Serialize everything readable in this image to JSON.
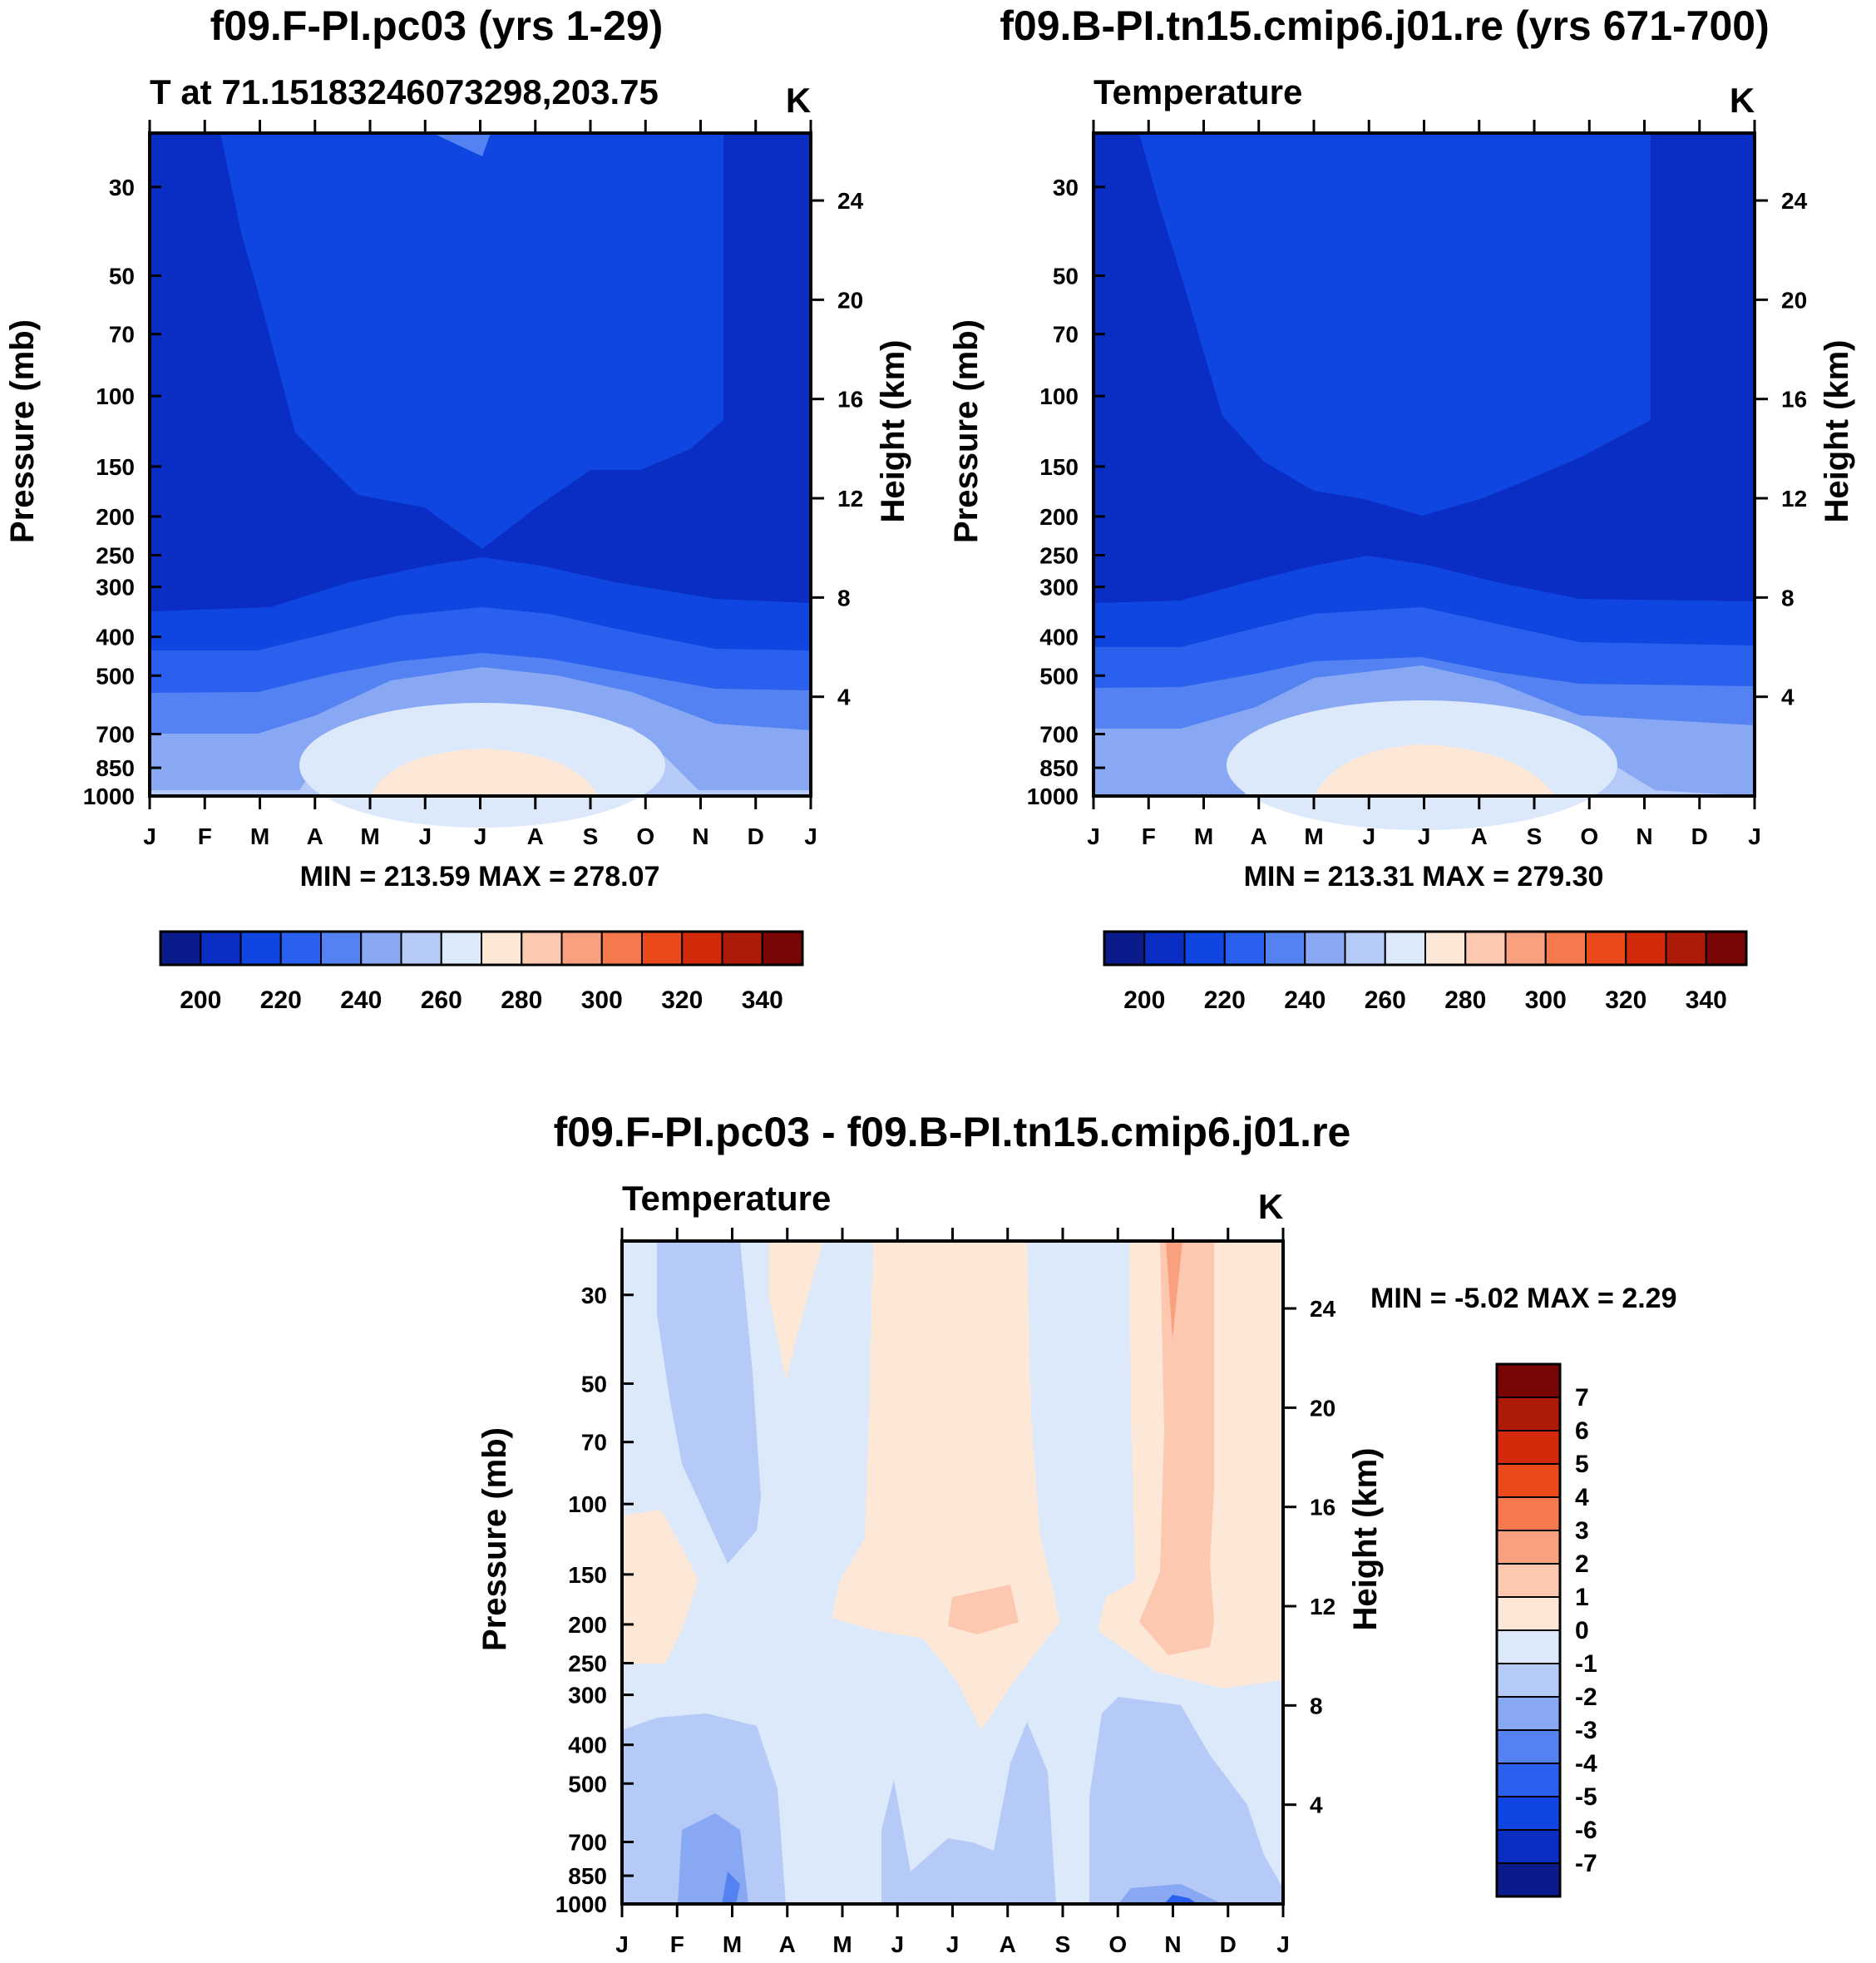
{
  "chart_data": [
    {
      "type": "contour",
      "title": "f09.F-PI.pc03 (yrs 1-29)",
      "subtitle": "T at 71.15183246073298,203.75",
      "units": "K",
      "ylabel": "Pressure (mb)",
      "ylabel_right": "Height (km)",
      "pressure_ticks": [
        30,
        50,
        70,
        100,
        150,
        200,
        250,
        300,
        400,
        500,
        700,
        850,
        1000
      ],
      "height_ticks": [
        24,
        20,
        16,
        12,
        8,
        4
      ],
      "months": [
        "J",
        "F",
        "M",
        "A",
        "M",
        "J",
        "J",
        "A",
        "S",
        "O",
        "N",
        "D",
        "J"
      ],
      "min_max_label": "MIN = 213.59 MAX = 278.07",
      "min": 213.59,
      "max": 278.07,
      "colorbar_ticks": [
        "200",
        "220",
        "240",
        "260",
        "280",
        "300",
        "320",
        "340"
      ]
    },
    {
      "type": "contour",
      "title": "f09.B-PI.tn15.cmip6.j01.re (yrs 671-700)",
      "subtitle": "Temperature",
      "units": "K",
      "ylabel": "Pressure (mb)",
      "ylabel_right": "Height (km)",
      "pressure_ticks": [
        30,
        50,
        70,
        100,
        150,
        200,
        250,
        300,
        400,
        500,
        700,
        850,
        1000
      ],
      "height_ticks": [
        24,
        20,
        16,
        12,
        8,
        4
      ],
      "months": [
        "J",
        "F",
        "M",
        "A",
        "M",
        "J",
        "J",
        "A",
        "S",
        "O",
        "N",
        "D",
        "J"
      ],
      "min_max_label": "MIN = 213.31 MAX = 279.30",
      "min": 213.31,
      "max": 279.3,
      "colorbar_ticks": [
        "200",
        "220",
        "240",
        "260",
        "280",
        "300",
        "320",
        "340"
      ]
    },
    {
      "type": "contour",
      "title": "f09.F-PI.pc03 - f09.B-PI.tn15.cmip6.j01.re",
      "subtitle": "Temperature",
      "units": "K",
      "ylabel": "Pressure (mb)",
      "ylabel_right": "Height (km)",
      "pressure_ticks": [
        30,
        50,
        70,
        100,
        150,
        200,
        250,
        300,
        400,
        500,
        700,
        850,
        1000
      ],
      "height_ticks": [
        24,
        20,
        16,
        12,
        8,
        4
      ],
      "months": [
        "J",
        "F",
        "M",
        "A",
        "M",
        "J",
        "J",
        "A",
        "S",
        "O",
        "N",
        "D",
        "J"
      ],
      "min_max_label": "MIN =  -5.02 MAX =   2.29",
      "min": -5.02,
      "max": 2.29,
      "colorbar_ticks": [
        "7",
        "6",
        "5",
        "4",
        "3",
        "2",
        "1",
        "0",
        "-1",
        "-2",
        "-3",
        "-4",
        "-5",
        "-6",
        "-7"
      ]
    }
  ],
  "colors": {
    "abs_levels": [
      "#0b1b8c",
      "#0a2dc4",
      "#0f45e0",
      "#2a60ee",
      "#5482f2",
      "#88a8f4",
      "#b6caf8",
      "#dce9fb",
      "#fde8d8",
      "#fcc8b0",
      "#f9a07e",
      "#f6794e",
      "#ea4a1c",
      "#d32a0c",
      "#ae1a08",
      "#7a0505"
    ],
    "diff_levels": [
      "#7a0505",
      "#ae1a08",
      "#d32a0c",
      "#ea4a1c",
      "#f6794e",
      "#f9a07e",
      "#fcc8b0",
      "#fde8d8",
      "#dce9fb",
      "#b6caf8",
      "#88a8f4",
      "#5482f2",
      "#2a60ee",
      "#0f45e0",
      "#0a2dc4",
      "#0b1b8c"
    ]
  }
}
